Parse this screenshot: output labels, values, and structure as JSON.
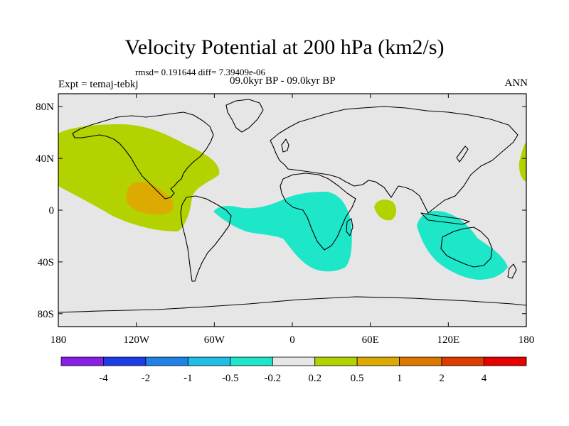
{
  "chart_data": {
    "type": "map",
    "title": "Velocity Potential at 200 hPa (km2/s)",
    "subtitle": "rmsd= 0.191644 diff= 7.39409e-06",
    "left_label": "Expt = temaj-tebkj",
    "center_label": "09.0kyr BP - 09.0kyr BP",
    "right_label": "ANN",
    "xticks": [
      "180",
      "120W",
      "60W",
      "0",
      "60E",
      "120E",
      "180"
    ],
    "xtick_values": [
      -180,
      -120,
      -60,
      0,
      60,
      120,
      180
    ],
    "yticks": [
      "80N",
      "40N",
      "0",
      "40S",
      "80S"
    ],
    "ytick_values": [
      80,
      40,
      0,
      -40,
      -80
    ],
    "xlim": [
      -180,
      180
    ],
    "ylim": [
      -90,
      90
    ],
    "contour_levels": [
      "-4",
      "-2",
      "-1",
      "-0.5",
      "-0.2",
      "0.2",
      "0.5",
      "1",
      "2",
      "4"
    ],
    "colorbar_colors": [
      "#8a1ee6",
      "#1e3ce6",
      "#1e82e6",
      "#1ebee6",
      "#1ee6c8",
      "#e6e6e6",
      "#b4d200",
      "#dcaa00",
      "#dc7800",
      "#dc3c00",
      "#e60000"
    ],
    "regions": [
      {
        "name": "north-pacific-positive",
        "level": "0.2 to 0.5",
        "color": "#b4d200"
      },
      {
        "name": "eastern-pacific-max",
        "level": "0.5 to 1",
        "color": "#dcaa00"
      },
      {
        "name": "atlantic-africa-negative",
        "level": "-0.5 to -0.2",
        "color": "#1ee6c8"
      },
      {
        "name": "indian-ocean-positive",
        "level": "0.2 to 0.5",
        "color": "#b4d200"
      },
      {
        "name": "australia-negative",
        "level": "-0.5 to -0.2",
        "color": "#1ee6c8"
      },
      {
        "name": "west-pacific-edge-positive",
        "level": "0.2 to 0.5",
        "color": "#b4d200"
      }
    ]
  }
}
